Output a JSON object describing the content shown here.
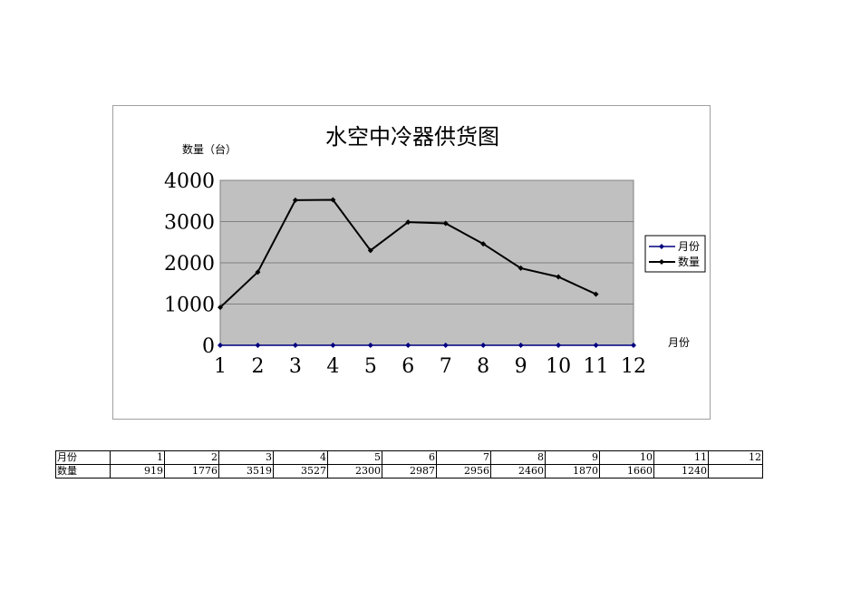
{
  "chart_data": {
    "type": "line",
    "title": "水空中冷器供货图",
    "ylabel": "数量（台）",
    "xlabel": "月份",
    "categories": [
      "1",
      "2",
      "3",
      "4",
      "5",
      "6",
      "7",
      "8",
      "9",
      "10",
      "11",
      "12"
    ],
    "yticks": [
      "4000",
      "3000",
      "2000",
      "1000",
      "0"
    ],
    "ylim": [
      0,
      4000
    ],
    "grid": true,
    "legend_position": "right",
    "series": [
      {
        "name": "月份",
        "color": "#000080",
        "values": [
          0,
          0,
          0,
          0,
          0,
          0,
          0,
          0,
          0,
          0,
          0,
          0
        ]
      },
      {
        "name": "数量",
        "color": "#000000",
        "values": [
          919,
          1776,
          3519,
          3527,
          2300,
          2987,
          2956,
          2460,
          1870,
          1660,
          1240,
          null
        ]
      }
    ],
    "plot_background": "#c0c0c0"
  },
  "table": {
    "rows": [
      {
        "label": "月份",
        "cells": [
          "1",
          "2",
          "3",
          "4",
          "5",
          "6",
          "7",
          "8",
          "9",
          "10",
          "11",
          "12"
        ]
      },
      {
        "label": "数量",
        "cells": [
          "919",
          "1776",
          "3519",
          "3527",
          "2300",
          "2987",
          "2956",
          "2460",
          "1870",
          "1660",
          "1240",
          ""
        ]
      }
    ]
  }
}
